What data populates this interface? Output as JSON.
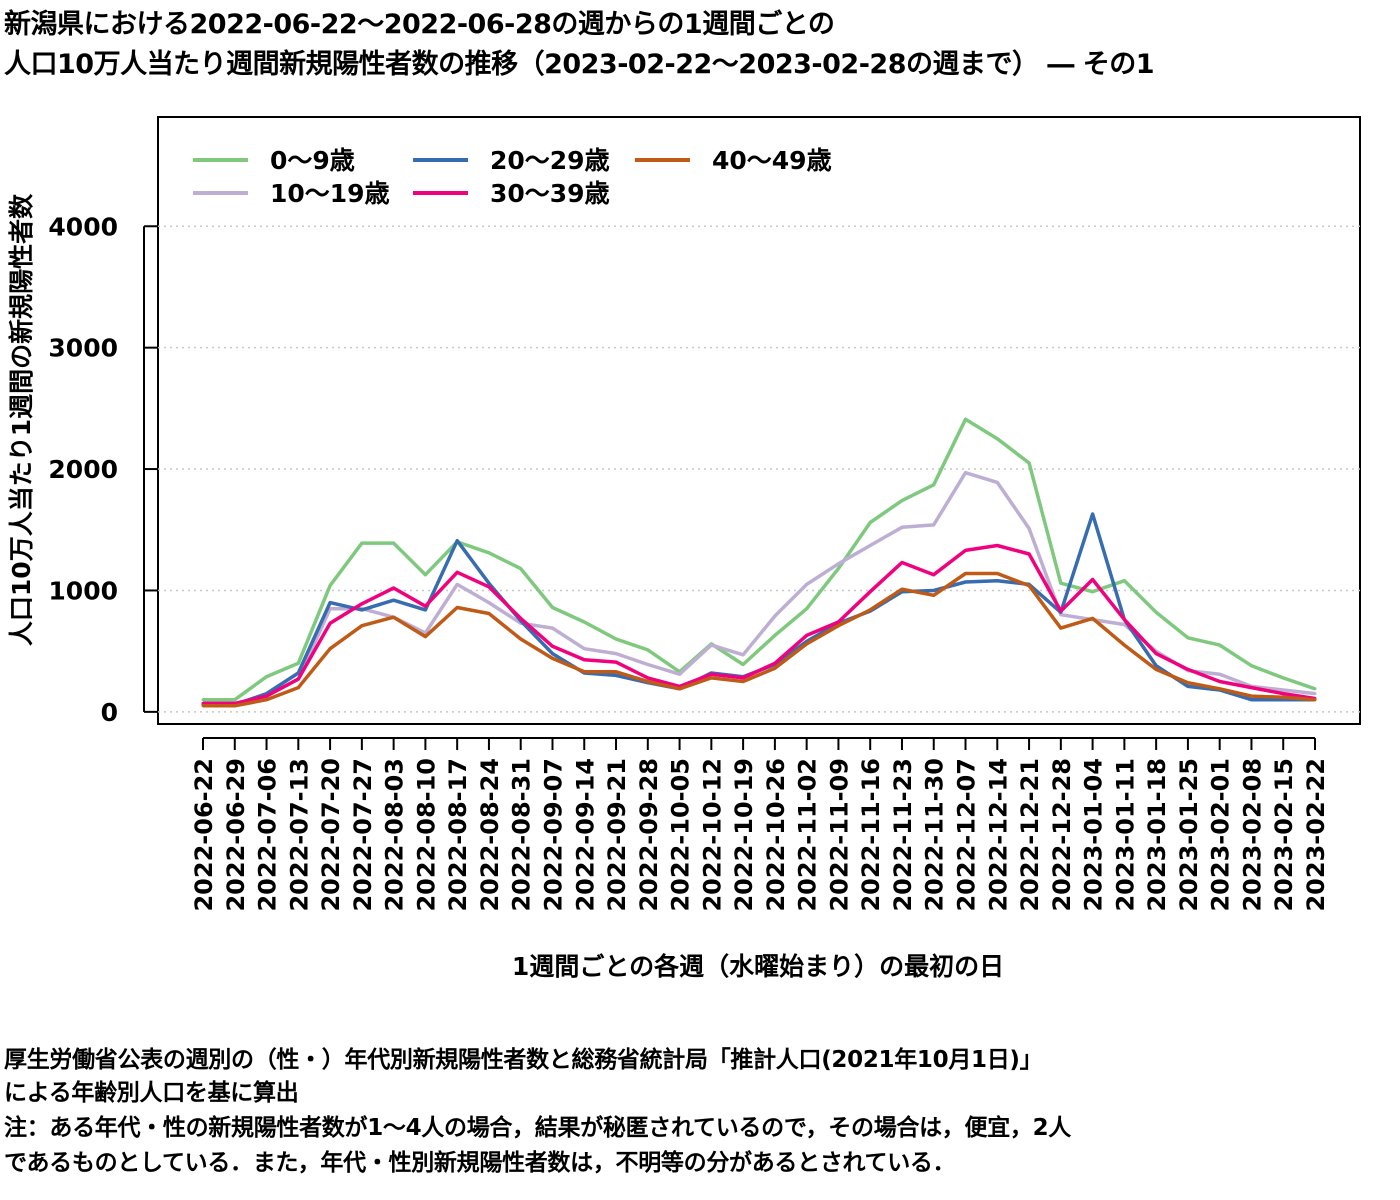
{
  "title": {
    "line1": "新潟県における2022-06-22～2022-06-28の週からの1週間ごとの",
    "line2": "人口10万人当たり週間新規陽性者数の推移（2023-02-22～2023-02-28の週まで） ― その1"
  },
  "notes": {
    "line1": "厚生労働省公表の週別の（性・）年代別新規陽性者数と総務省統計局「推計人口(2021年10月1日)」",
    "line2": "による年齢別人口を基に算出",
    "line3": "注：ある年代・性の新規陽性者数が1～4人の場合，結果が秘匿されているので，その場合は，便宜，2人",
    "line4": "であるものとしている．また，年代・性別新規陽性者数は，不明等の分があるとされている．"
  },
  "chart_data": {
    "type": "line",
    "xlabel": "1週間ごとの各週（水曜始まり）の最初の日",
    "ylabel": "人口10万人当たり1週間の新規陽性者数",
    "ylim": [
      -100,
      4900
    ],
    "yticks": [
      0,
      1000,
      2000,
      3000,
      4000
    ],
    "grid": true,
    "legend_position": "top-left",
    "categories": [
      "2022-06-22",
      "2022-06-29",
      "2022-07-06",
      "2022-07-13",
      "2022-07-20",
      "2022-07-27",
      "2022-08-03",
      "2022-08-10",
      "2022-08-17",
      "2022-08-24",
      "2022-08-31",
      "2022-09-07",
      "2022-09-14",
      "2022-09-21",
      "2022-09-28",
      "2022-10-05",
      "2022-10-12",
      "2022-10-19",
      "2022-10-26",
      "2022-11-02",
      "2022-11-09",
      "2022-11-16",
      "2022-11-23",
      "2022-11-30",
      "2022-12-07",
      "2022-12-14",
      "2022-12-21",
      "2022-12-28",
      "2023-01-04",
      "2023-01-11",
      "2023-01-18",
      "2023-01-25",
      "2023-02-01",
      "2023-02-08",
      "2023-02-15",
      "2023-02-22"
    ],
    "series": [
      {
        "name": "0～9歳",
        "color": "#7fc97f",
        "values": [
          100,
          100,
          290,
          400,
          1040,
          1390,
          1390,
          1130,
          1400,
          1310,
          1180,
          860,
          740,
          600,
          510,
          330,
          560,
          390,
          630,
          850,
          1180,
          1560,
          1740,
          1870,
          2410,
          2250,
          2050,
          1060,
          990,
          1080,
          820,
          610,
          550,
          380,
          280,
          190
        ]
      },
      {
        "name": "10～19歳",
        "color": "#beaed4",
        "values": [
          70,
          70,
          130,
          270,
          850,
          850,
          780,
          650,
          1050,
          900,
          730,
          690,
          520,
          480,
          390,
          310,
          550,
          470,
          790,
          1050,
          1220,
          1370,
          1520,
          1540,
          1970,
          1890,
          1510,
          800,
          760,
          720,
          500,
          340,
          310,
          210,
          180,
          150
        ]
      },
      {
        "name": "20～29歳",
        "color": "#386cb0",
        "values": [
          60,
          60,
          150,
          320,
          900,
          840,
          920,
          840,
          1410,
          1060,
          750,
          480,
          320,
          300,
          240,
          190,
          320,
          290,
          390,
          580,
          730,
          830,
          990,
          1000,
          1070,
          1080,
          1050,
          820,
          1630,
          760,
          380,
          210,
          180,
          100,
          100,
          100
        ]
      },
      {
        "name": "30～39歳",
        "color": "#f0027f",
        "values": [
          70,
          70,
          130,
          270,
          730,
          890,
          1020,
          870,
          1150,
          1030,
          770,
          540,
          430,
          410,
          280,
          210,
          310,
          280,
          400,
          630,
          740,
          990,
          1230,
          1130,
          1330,
          1370,
          1300,
          830,
          1090,
          760,
          480,
          350,
          250,
          200,
          150,
          110
        ]
      },
      {
        "name": "40～49歳",
        "color": "#bf5b17",
        "values": [
          50,
          50,
          100,
          200,
          520,
          710,
          780,
          620,
          860,
          810,
          600,
          440,
          330,
          330,
          250,
          190,
          280,
          250,
          360,
          560,
          710,
          840,
          1010,
          960,
          1140,
          1140,
          1040,
          690,
          770,
          550,
          350,
          240,
          190,
          130,
          120,
          100
        ]
      }
    ]
  }
}
